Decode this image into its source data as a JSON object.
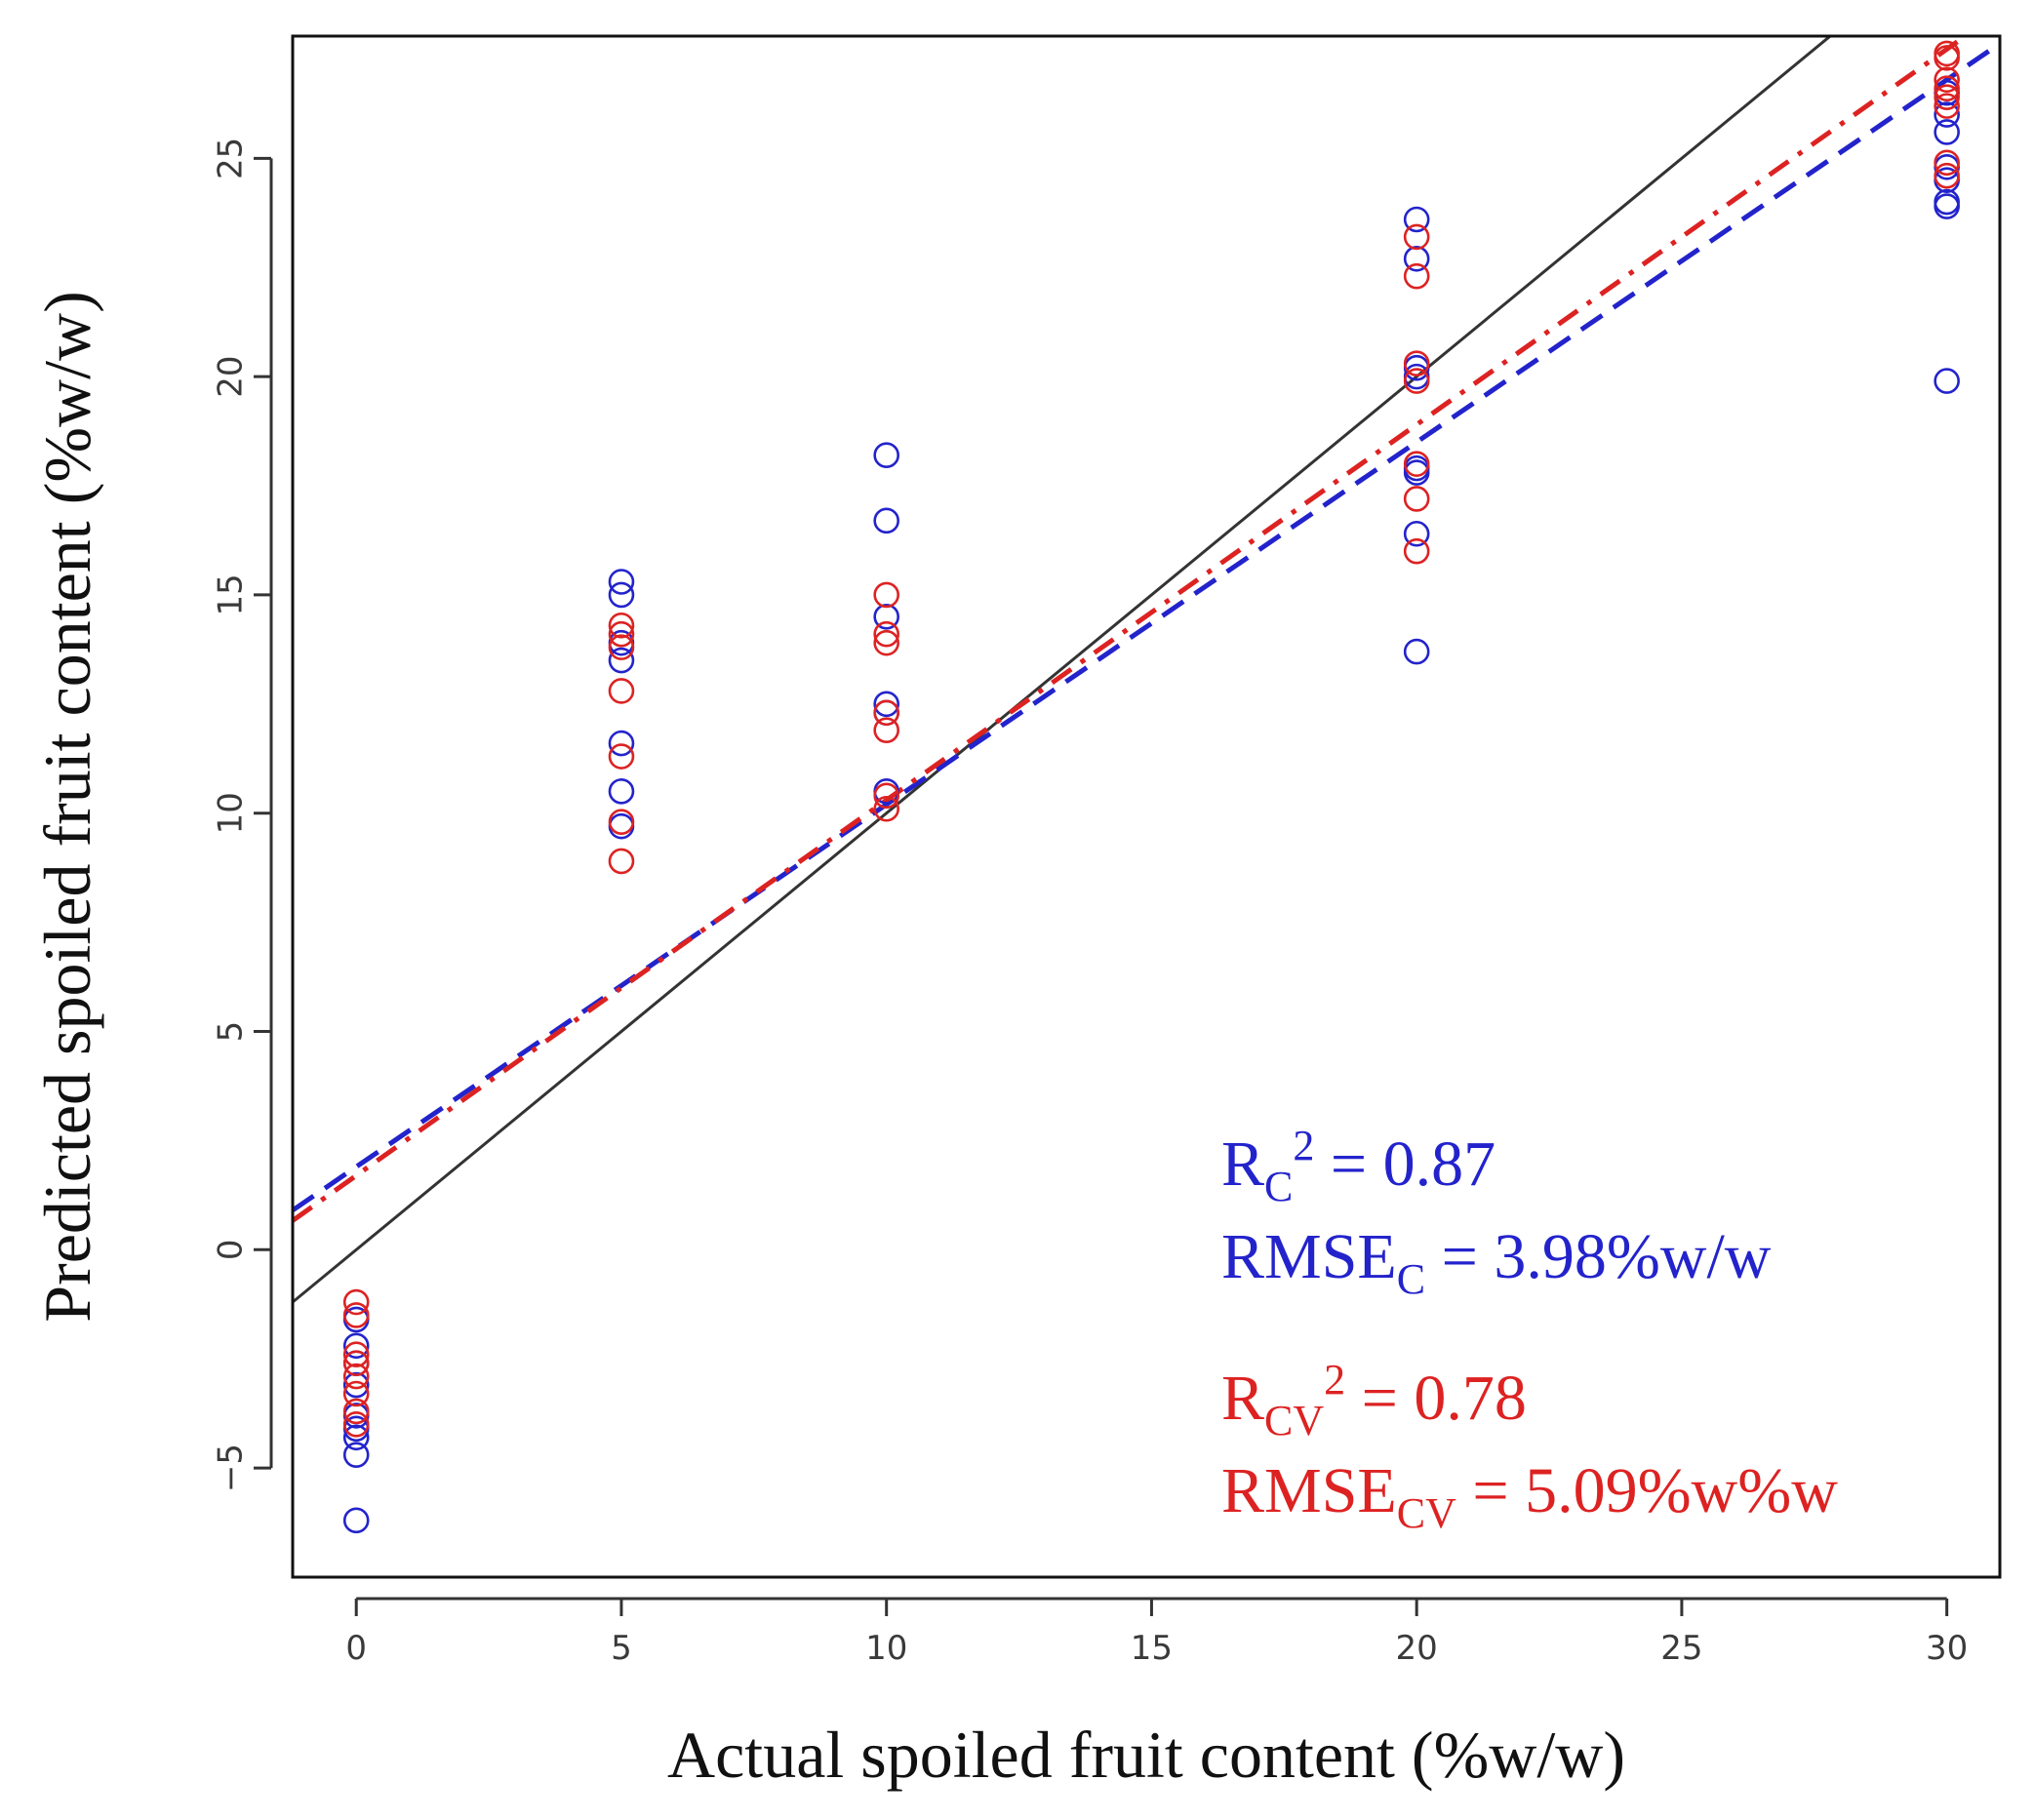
{
  "chart_data": {
    "type": "scatter",
    "title": "",
    "xlabel": "Actual spoiled fruit content (%w/w)",
    "ylabel": "Predicted spoiled fruit content (%w/w)",
    "xlim": [
      -1.2,
      31
    ],
    "ylim": [
      -7.5,
      27.8
    ],
    "x_ticks": [
      0,
      5,
      10,
      15,
      20,
      25,
      30
    ],
    "y_ticks": [
      -5,
      0,
      5,
      10,
      15,
      20,
      25
    ],
    "grid": false,
    "colors": {
      "calibration": "#2323cc",
      "cross_validation": "#dd2222",
      "reference": "#333333"
    },
    "series": [
      {
        "key": "calibration",
        "marker": "open-circle",
        "x": [
          0,
          0,
          0,
          0,
          0,
          0,
          0,
          0,
          0,
          5,
          5,
          5,
          5,
          5,
          5,
          5,
          10,
          10,
          10,
          10,
          10,
          10,
          20,
          20,
          20,
          20,
          20,
          20,
          20,
          20,
          30,
          30,
          30,
          30,
          30,
          30,
          30,
          30
        ],
        "y": [
          -1.6,
          -2.2,
          -2.6,
          -3.1,
          -3.8,
          -4.1,
          -4.3,
          -4.7,
          -6.2,
          15.3,
          15.0,
          13.9,
          13.5,
          11.6,
          10.5,
          9.7,
          18.2,
          16.7,
          14.5,
          12.5,
          12.3,
          10.5,
          23.6,
          22.7,
          20.2,
          20.0,
          17.9,
          17.8,
          16.4,
          13.7,
          26.0,
          25.6,
          24.8,
          24.5,
          24.0,
          23.9,
          26.5,
          19.9
        ]
      },
      {
        "key": "cross_validation",
        "marker": "open-circle",
        "x": [
          0,
          0,
          0,
          0,
          0,
          0,
          0,
          0,
          5,
          5,
          5,
          5,
          5,
          5,
          5,
          10,
          10,
          10,
          10,
          10,
          10,
          10,
          20,
          20,
          20,
          20,
          20,
          20,
          20,
          30,
          30,
          30,
          30,
          30,
          30,
          30,
          30
        ],
        "y": [
          -1.2,
          -1.5,
          -2.4,
          -2.6,
          -2.9,
          -3.3,
          -3.7,
          -4.0,
          14.3,
          14.1,
          13.8,
          12.8,
          11.3,
          9.8,
          8.9,
          15.0,
          14.1,
          13.9,
          12.3,
          11.9,
          10.4,
          10.1,
          23.2,
          22.3,
          20.3,
          19.9,
          18.0,
          17.2,
          16.0,
          27.4,
          27.3,
          26.8,
          26.6,
          26.2,
          24.9,
          24.6,
          26.4
        ]
      }
    ],
    "lines": [
      {
        "key": "reference",
        "style": "solid",
        "intercept": 0,
        "slope": 1
      },
      {
        "key": "calibration",
        "style": "dashed",
        "intercept": 1.9,
        "slope": 0.83
      },
      {
        "key": "cross_validation",
        "style": "dash-dot",
        "intercept": 1.7,
        "slope": 0.86
      }
    ]
  },
  "annotations": {
    "cal_r2": {
      "prefix": "R",
      "sub": "C",
      "sup": "2",
      "suffix": " = 0.87"
    },
    "cal_rmse": {
      "prefix": "RMSE",
      "sub": "C",
      "suffix": " = 3.98%w/w"
    },
    "cv_r2": {
      "prefix": "R",
      "sub": "CV",
      "sup": "2",
      "suffix": " = 0.78"
    },
    "cv_rmse": {
      "prefix": "RMSE",
      "sub": "CV",
      "suffix": " = 5.09%w%w"
    }
  }
}
